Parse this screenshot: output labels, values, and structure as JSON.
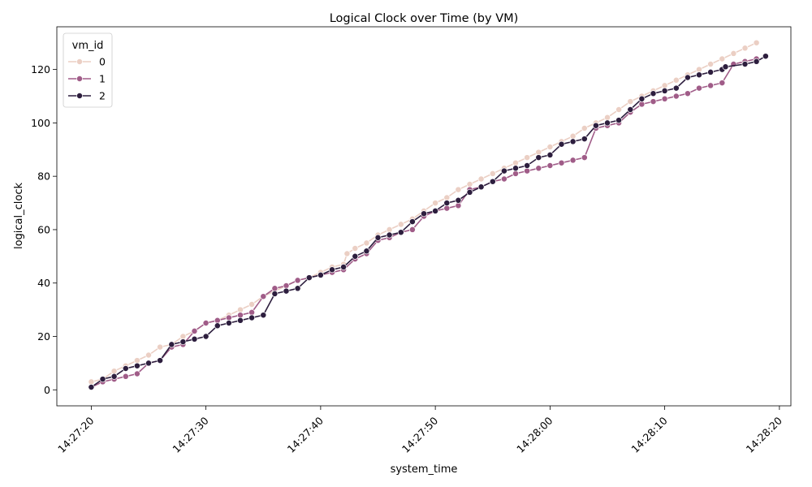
{
  "chart_data": {
    "type": "line",
    "title": "Logical Clock over Time (by VM)",
    "xlabel": "system_time",
    "ylabel": "logical_clock",
    "xlim": [
      "14:27:17",
      "14:28:21"
    ],
    "ylim": [
      -6,
      136
    ],
    "x_ticks": [
      "14:27:20",
      "14:27:30",
      "14:27:40",
      "14:27:50",
      "14:28:00",
      "14:28:10",
      "14:28:20"
    ],
    "y_ticks": [
      0,
      20,
      40,
      60,
      80,
      100,
      120
    ],
    "grid": false,
    "legend": {
      "title": "vm_id",
      "placement": "top-left"
    },
    "series": [
      {
        "name": "0",
        "color": "#ebcfc4",
        "points": [
          [
            "14:27:20",
            3
          ],
          [
            "14:27:21",
            4
          ],
          [
            "14:27:22",
            7
          ],
          [
            "14:27:23",
            9
          ],
          [
            "14:27:24",
            11
          ],
          [
            "14:27:25",
            13
          ],
          [
            "14:27:26",
            16
          ],
          [
            "14:27:27",
            17
          ],
          [
            "14:27:28",
            20
          ],
          [
            "14:27:29",
            22
          ],
          [
            "14:27:30",
            25
          ],
          [
            "14:27:31",
            26
          ],
          [
            "14:27:32",
            28
          ],
          [
            "14:27:33",
            30
          ],
          [
            "14:27:34",
            32
          ],
          [
            "14:27:35",
            35
          ],
          [
            "14:27:36",
            37
          ],
          [
            "14:27:37",
            39
          ],
          [
            "14:27:38",
            41
          ],
          [
            "14:27:39",
            42
          ],
          [
            "14:27:40",
            44
          ],
          [
            "14:27:41",
            46
          ],
          [
            "14:27:42",
            47
          ],
          [
            "14:27:42.3",
            51
          ],
          [
            "14:27:43",
            53
          ],
          [
            "14:27:44",
            55
          ],
          [
            "14:27:45",
            58
          ],
          [
            "14:27:46",
            60
          ],
          [
            "14:27:47",
            62
          ],
          [
            "14:27:48",
            64
          ],
          [
            "14:27:49",
            67
          ],
          [
            "14:27:50",
            70
          ],
          [
            "14:27:51",
            72
          ],
          [
            "14:27:52",
            75
          ],
          [
            "14:27:53",
            77
          ],
          [
            "14:27:54",
            79
          ],
          [
            "14:27:55",
            81
          ],
          [
            "14:27:56",
            83
          ],
          [
            "14:27:57",
            85
          ],
          [
            "14:27:58",
            87
          ],
          [
            "14:27:59",
            89
          ],
          [
            "14:28:00",
            91
          ],
          [
            "14:28:01",
            93
          ],
          [
            "14:28:02",
            95
          ],
          [
            "14:28:03",
            98
          ],
          [
            "14:28:04",
            100
          ],
          [
            "14:28:05",
            102
          ],
          [
            "14:28:06",
            105
          ],
          [
            "14:28:07",
            108
          ],
          [
            "14:28:08",
            110
          ],
          [
            "14:28:09",
            112
          ],
          [
            "14:28:10",
            114
          ],
          [
            "14:28:11",
            116
          ],
          [
            "14:28:12",
            118
          ],
          [
            "14:28:13",
            120
          ],
          [
            "14:28:14",
            122
          ],
          [
            "14:28:15",
            124
          ],
          [
            "14:28:16",
            126
          ],
          [
            "14:28:17",
            128
          ],
          [
            "14:28:18",
            130
          ]
        ]
      },
      {
        "name": "1",
        "color": "#a05c88",
        "points": [
          [
            "14:27:20",
            1
          ],
          [
            "14:27:21",
            3
          ],
          [
            "14:27:22",
            4
          ],
          [
            "14:27:23",
            5
          ],
          [
            "14:27:24",
            6
          ],
          [
            "14:27:25",
            10
          ],
          [
            "14:27:26",
            11
          ],
          [
            "14:27:27",
            16
          ],
          [
            "14:27:28",
            17
          ],
          [
            "14:27:29",
            22
          ],
          [
            "14:27:30",
            25
          ],
          [
            "14:27:31",
            26
          ],
          [
            "14:27:32",
            27
          ],
          [
            "14:27:33",
            28
          ],
          [
            "14:27:34",
            29
          ],
          [
            "14:27:35",
            35
          ],
          [
            "14:27:36",
            38
          ],
          [
            "14:27:37",
            39
          ],
          [
            "14:27:38",
            41
          ],
          [
            "14:27:39",
            42
          ],
          [
            "14:27:40",
            43
          ],
          [
            "14:27:41",
            44
          ],
          [
            "14:27:42",
            45
          ],
          [
            "14:27:43",
            49
          ],
          [
            "14:27:44",
            51
          ],
          [
            "14:27:45",
            56
          ],
          [
            "14:27:46",
            57
          ],
          [
            "14:27:47",
            59
          ],
          [
            "14:27:48",
            60
          ],
          [
            "14:27:49",
            65
          ],
          [
            "14:27:50",
            67
          ],
          [
            "14:27:51",
            68
          ],
          [
            "14:27:52",
            69
          ],
          [
            "14:27:53",
            75
          ],
          [
            "14:27:54",
            76
          ],
          [
            "14:27:55",
            78
          ],
          [
            "14:27:56",
            79
          ],
          [
            "14:27:57",
            81
          ],
          [
            "14:27:58",
            82
          ],
          [
            "14:27:59",
            83
          ],
          [
            "14:28:00",
            84
          ],
          [
            "14:28:01",
            85
          ],
          [
            "14:28:02",
            86
          ],
          [
            "14:28:03",
            87
          ],
          [
            "14:28:04",
            98
          ],
          [
            "14:28:05",
            99
          ],
          [
            "14:28:06",
            100
          ],
          [
            "14:28:07",
            104
          ],
          [
            "14:28:08",
            107
          ],
          [
            "14:28:09",
            108
          ],
          [
            "14:28:10",
            109
          ],
          [
            "14:28:11",
            110
          ],
          [
            "14:28:12",
            111
          ],
          [
            "14:28:13",
            113
          ],
          [
            "14:28:14",
            114
          ],
          [
            "14:28:15",
            115
          ],
          [
            "14:28:16",
            122
          ],
          [
            "14:28:17",
            123
          ],
          [
            "14:28:18",
            124
          ]
        ]
      },
      {
        "name": "2",
        "color": "#2d1e3e",
        "points": [
          [
            "14:27:20",
            1
          ],
          [
            "14:27:21",
            4
          ],
          [
            "14:27:22",
            5
          ],
          [
            "14:27:23",
            8
          ],
          [
            "14:27:24",
            9
          ],
          [
            "14:27:25",
            10
          ],
          [
            "14:27:26",
            11
          ],
          [
            "14:27:27",
            17
          ],
          [
            "14:27:28",
            18
          ],
          [
            "14:27:29",
            19
          ],
          [
            "14:27:30",
            20
          ],
          [
            "14:27:31",
            24
          ],
          [
            "14:27:32",
            25
          ],
          [
            "14:27:33",
            26
          ],
          [
            "14:27:34",
            27
          ],
          [
            "14:27:35",
            28
          ],
          [
            "14:27:36",
            36
          ],
          [
            "14:27:37",
            37
          ],
          [
            "14:27:38",
            38
          ],
          [
            "14:27:39",
            42
          ],
          [
            "14:27:40",
            43
          ],
          [
            "14:27:41",
            45
          ],
          [
            "14:27:42",
            46
          ],
          [
            "14:27:43",
            50
          ],
          [
            "14:27:44",
            52
          ],
          [
            "14:27:45",
            57
          ],
          [
            "14:27:46",
            58
          ],
          [
            "14:27:47",
            59
          ],
          [
            "14:27:48",
            63
          ],
          [
            "14:27:49",
            66
          ],
          [
            "14:27:50",
            67
          ],
          [
            "14:27:51",
            70
          ],
          [
            "14:27:52",
            71
          ],
          [
            "14:27:53",
            74
          ],
          [
            "14:27:54",
            76
          ],
          [
            "14:27:55",
            78
          ],
          [
            "14:27:56",
            82
          ],
          [
            "14:27:57",
            83
          ],
          [
            "14:27:58",
            84
          ],
          [
            "14:27:59",
            87
          ],
          [
            "14:28:00",
            88
          ],
          [
            "14:28:01",
            92
          ],
          [
            "14:28:02",
            93
          ],
          [
            "14:28:03",
            94
          ],
          [
            "14:28:04",
            99
          ],
          [
            "14:28:05",
            100
          ],
          [
            "14:28:06",
            101
          ],
          [
            "14:28:07",
            105
          ],
          [
            "14:28:08",
            109
          ],
          [
            "14:28:09",
            111
          ],
          [
            "14:28:10",
            112
          ],
          [
            "14:28:11",
            113
          ],
          [
            "14:28:12",
            117
          ],
          [
            "14:28:13",
            118
          ],
          [
            "14:28:14",
            119
          ],
          [
            "14:28:15",
            120
          ],
          [
            "14:28:15.3",
            121
          ],
          [
            "14:28:17",
            122
          ],
          [
            "14:28:18",
            123
          ],
          [
            "14:28:18.8",
            125
          ]
        ]
      }
    ]
  }
}
